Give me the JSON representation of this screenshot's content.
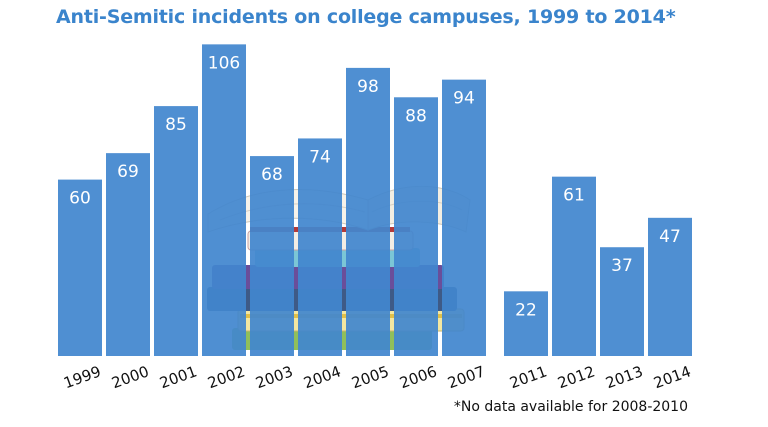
{
  "chart_data": {
    "type": "bar",
    "title": "Anti-Semitic incidents on college campuses, 1999 to 2014*",
    "categories": [
      "1999",
      "2000",
      "2001",
      "2002",
      "2003",
      "2004",
      "2005",
      "2006",
      "2007",
      "2011",
      "2012",
      "2013",
      "2014"
    ],
    "values": [
      60,
      69,
      85,
      106,
      68,
      74,
      98,
      88,
      94,
      22,
      61,
      37,
      47
    ],
    "xlabel": "",
    "ylabel": "",
    "ylim": [
      0,
      110
    ],
    "grid": false,
    "footnote": "*No data available for 2008-2010",
    "colors": {
      "bar": "#4286cf",
      "title": "#3a84cc",
      "value_label": "#ffffff"
    }
  }
}
